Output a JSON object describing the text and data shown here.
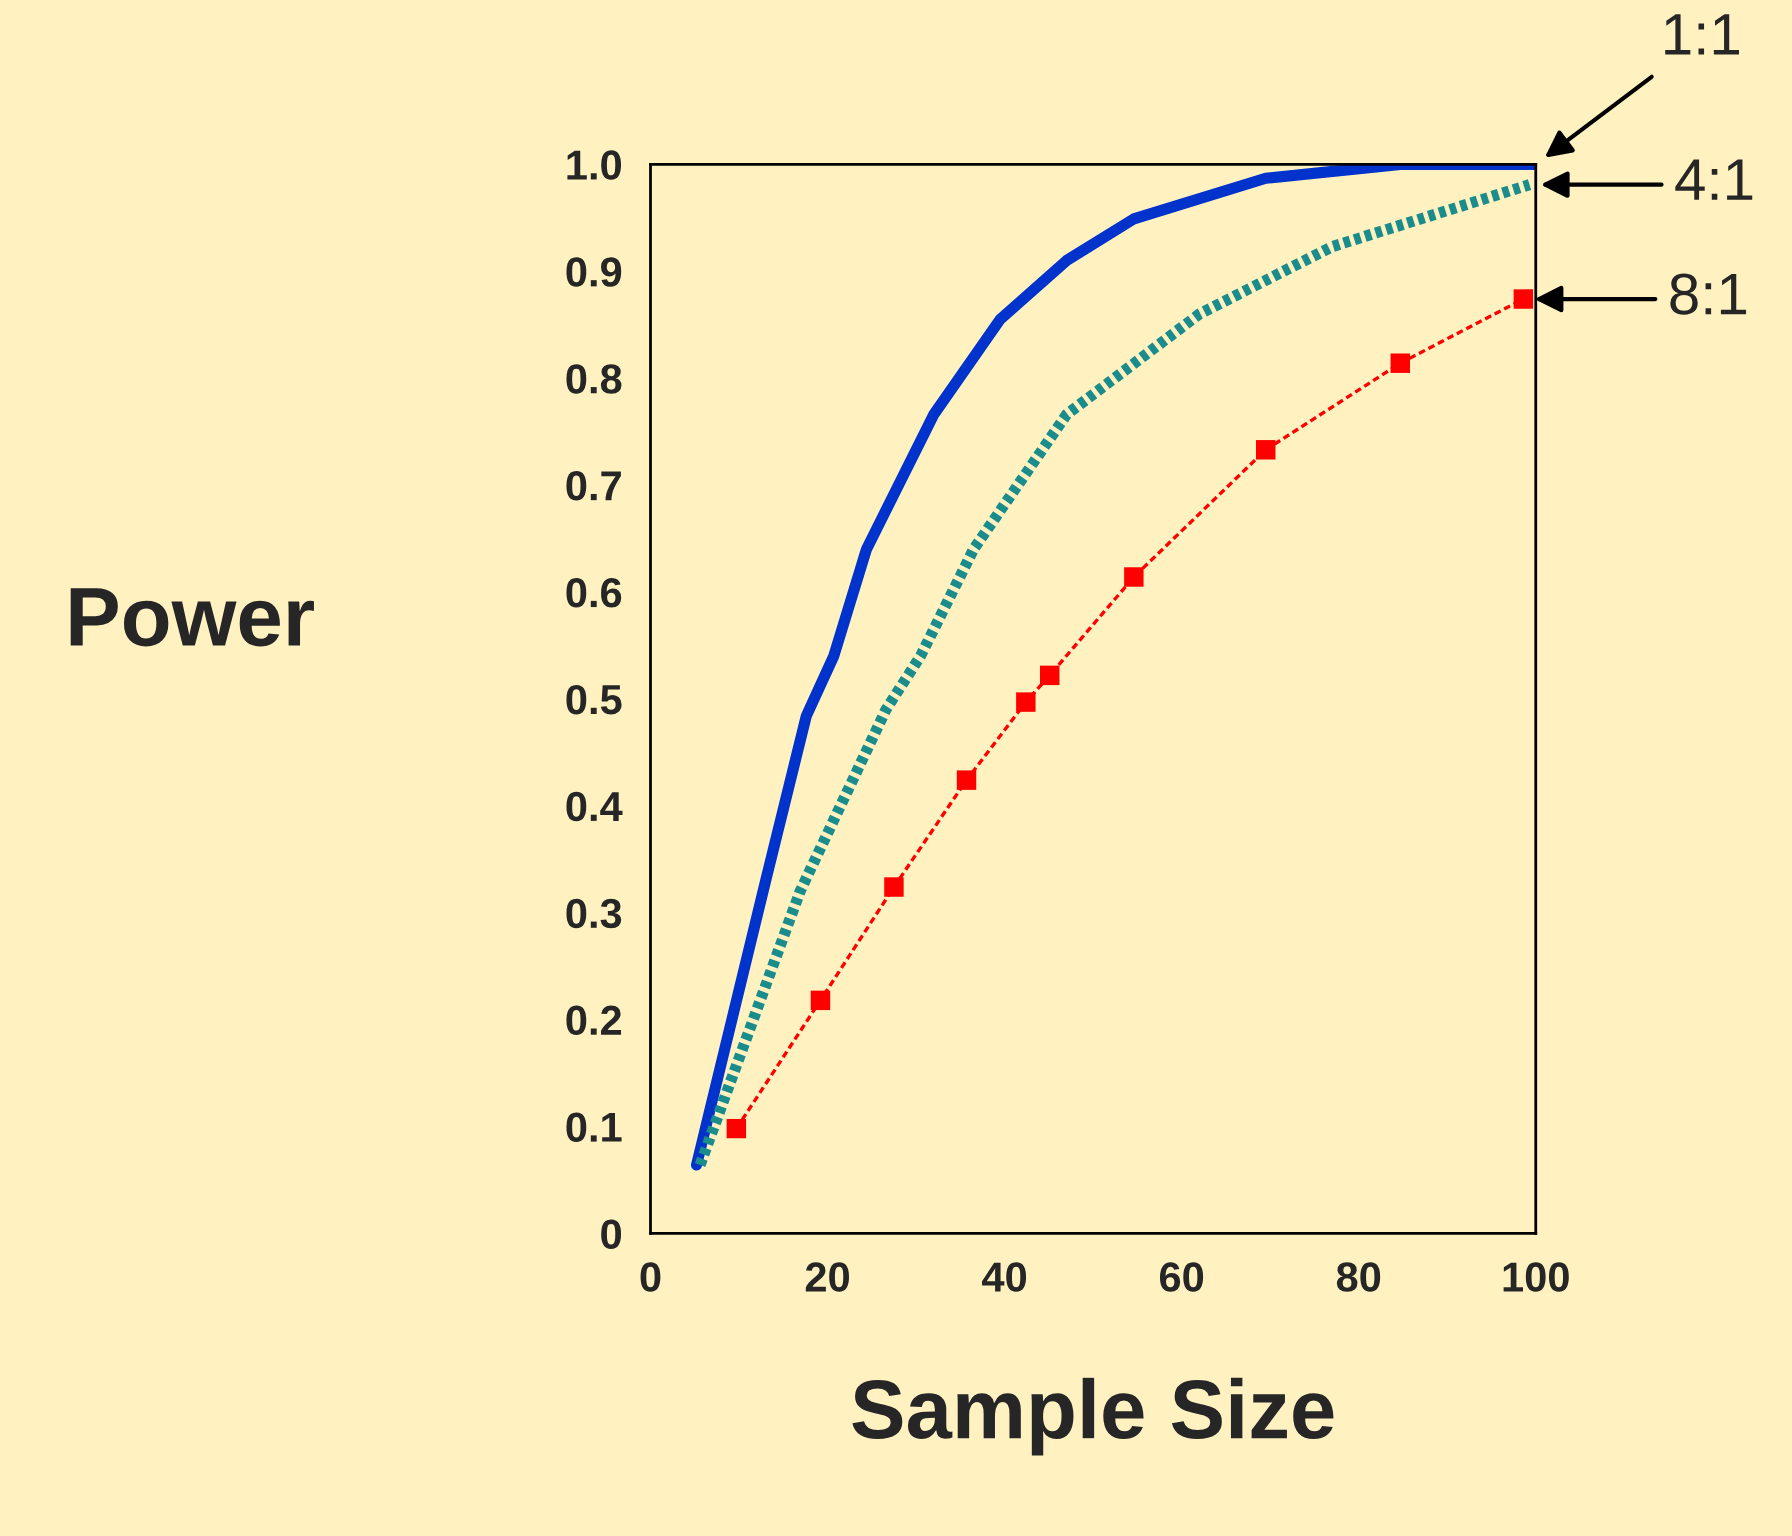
{
  "chart_data": {
    "type": "line",
    "xlabel": "Sample Size",
    "ylabel": "Power",
    "xlim": [
      0,
      100
    ],
    "xticks": [
      0,
      20,
      40,
      60,
      80,
      100
    ],
    "ylim": [
      0,
      1.0
    ],
    "yticks": [
      0,
      0.1,
      0.2,
      0.3,
      0.4,
      0.5,
      0.6,
      0.7,
      0.8,
      0.9,
      {
        "value": 1.0,
        "label": "1.0"
      }
    ],
    "grid": false,
    "legend": false,
    "series": [
      {
        "name": "1:1",
        "color": "#0033cc",
        "line_style": "solid",
        "marker": "none",
        "x": [
          5.2,
          13.1,
          17.6,
          20.7,
          24.4,
          32,
          39.5,
          47,
          54.6,
          69.5,
          84.7,
          100
        ],
        "values": [
          0.064,
          0.333,
          0.484,
          0.54,
          0.64,
          0.766,
          0.855,
          0.91,
          0.949,
          0.987,
          1.0,
          1.0
        ]
      },
      {
        "name": "4:1",
        "color": "#1a8c8c",
        "line_style": "dotted",
        "marker": "none",
        "x": [
          5.6,
          16.9,
          26.6,
          30.5,
          36.5,
          47,
          62,
          77,
          99.3
        ],
        "values": [
          0.064,
          0.32,
          0.49,
          0.54,
          0.64,
          0.766,
          0.86,
          0.923,
          0.981
        ]
      },
      {
        "name": "8:1",
        "color": "#ff0000",
        "line_style": "dashed",
        "marker": "square",
        "x": [
          9.7,
          19.2,
          27.5,
          35.7,
          42.4,
          45.1,
          54.6,
          69.5,
          84.7,
          98.6
        ],
        "values": [
          0.098,
          0.218,
          0.324,
          0.424,
          0.497,
          0.522,
          0.614,
          0.733,
          0.814,
          0.874
        ]
      }
    ]
  }
}
